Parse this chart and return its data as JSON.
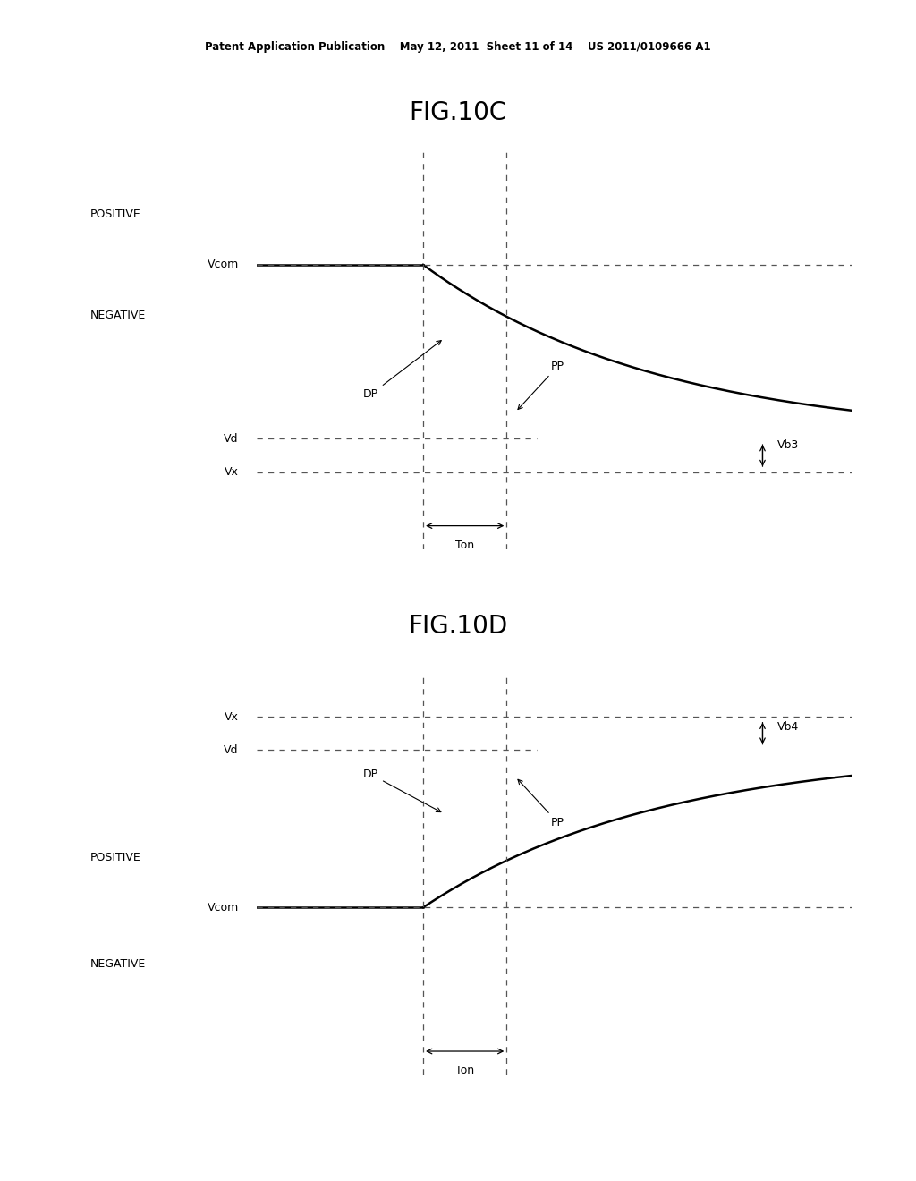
{
  "header_text": "Patent Application Publication    May 12, 2011  Sheet 11 of 14    US 2011/0109666 A1",
  "fig_title_C": "FIG.10C",
  "fig_title_D": "FIG.10D",
  "background_color": "#ffffff",
  "line_color": "#000000",
  "dash_color": "#555555"
}
